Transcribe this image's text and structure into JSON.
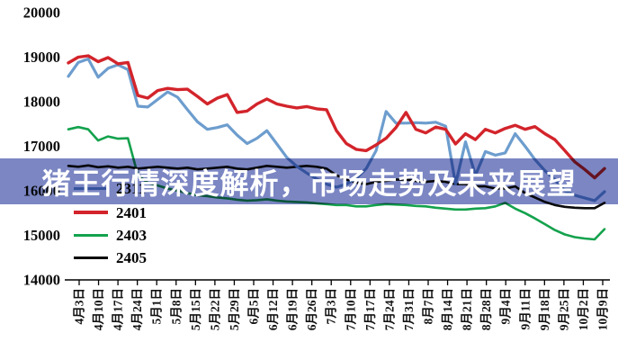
{
  "banner": {
    "text": "猪王行情深度解析，市场走势及未来展望",
    "bg_color": "#7B86C3",
    "text_color": "#FFFFFF"
  },
  "chart_data": {
    "type": "line",
    "title": "",
    "xlabel": "",
    "ylabel": "",
    "ylim": [
      14000,
      20000
    ],
    "yticks": [
      20000,
      19000,
      18000,
      17000,
      16000,
      15000,
      14000
    ],
    "grid": false,
    "legend_position": "left-middle",
    "categories": [
      "4月3日",
      "4月10日",
      "4月17日",
      "4月24日",
      "5月1日",
      "5月8日",
      "5月15日",
      "5月22日",
      "5月29日",
      "6月5日",
      "6月12日",
      "6月19日",
      "6月26日",
      "7月3日",
      "7月10日",
      "7月17日",
      "7月24日",
      "7月31日",
      "8月7日",
      "8月14日",
      "8月21日",
      "8月28日",
      "9月4日",
      "9月11日",
      "9月18日",
      "9月25日",
      "10月2日",
      "10月9日"
    ],
    "points_per_category": 2,
    "axis_color": "#000000",
    "series": [
      {
        "name": "2311",
        "color": "#6D9DCE",
        "values": [
          18570,
          18880,
          18960,
          18550,
          18750,
          18830,
          18720,
          17900,
          17880,
          18050,
          18220,
          18100,
          17820,
          17550,
          17380,
          17420,
          17480,
          17250,
          17060,
          17180,
          17350,
          17050,
          16750,
          16550,
          16400,
          16270,
          16150,
          16080,
          16150,
          16280,
          16500,
          16900,
          17780,
          17520,
          17520,
          17530,
          17520,
          17540,
          17450,
          16150,
          17100,
          16350,
          16880,
          16800,
          16850,
          17280,
          17000,
          16700,
          16450,
          16250,
          16000,
          15900,
          15840,
          15780,
          15980
        ]
      },
      {
        "name": "2401",
        "color": "#D3242B",
        "values": [
          18870,
          19000,
          19030,
          18900,
          18990,
          18850,
          18880,
          18140,
          18080,
          18250,
          18300,
          18270,
          18280,
          18120,
          17950,
          18080,
          18160,
          17760,
          17790,
          17950,
          18060,
          17950,
          17900,
          17860,
          17890,
          17840,
          17820,
          17350,
          17060,
          16930,
          16900,
          17030,
          17180,
          17420,
          17760,
          17380,
          17300,
          17430,
          17380,
          17050,
          17280,
          17150,
          17380,
          17300,
          17400,
          17470,
          17380,
          17440,
          17280,
          17150,
          16900,
          16650,
          16480,
          16290,
          16500
        ]
      },
      {
        "name": "2403",
        "color": "#14A24D",
        "values": [
          17380,
          17430,
          17380,
          17130,
          17220,
          17170,
          17180,
          16350,
          16180,
          16120,
          16050,
          16000,
          15950,
          15900,
          15880,
          15850,
          15830,
          15800,
          15780,
          15790,
          15810,
          15780,
          15760,
          15750,
          15740,
          15720,
          15700,
          15680,
          15680,
          15650,
          15650,
          15680,
          15700,
          15690,
          15680,
          15660,
          15650,
          15620,
          15600,
          15580,
          15580,
          15600,
          15610,
          15650,
          15730,
          15600,
          15500,
          15380,
          15250,
          15120,
          15020,
          14960,
          14930,
          14910,
          15140
        ]
      },
      {
        "name": "2405",
        "color": "#0B0B0C",
        "values": [
          16560,
          16540,
          16570,
          16530,
          16550,
          16520,
          16540,
          16500,
          16520,
          16540,
          16520,
          16500,
          16520,
          16480,
          16500,
          16520,
          16540,
          16500,
          16480,
          16520,
          16560,
          16540,
          16520,
          16540,
          16560,
          16540,
          16500,
          16350,
          16250,
          16180,
          16150,
          16200,
          16220,
          16250,
          16250,
          16220,
          16200,
          16220,
          16200,
          16150,
          16150,
          16100,
          16100,
          16050,
          16050,
          16100,
          15950,
          15850,
          15750,
          15680,
          15640,
          15620,
          15610,
          15610,
          15730
        ]
      }
    ]
  }
}
